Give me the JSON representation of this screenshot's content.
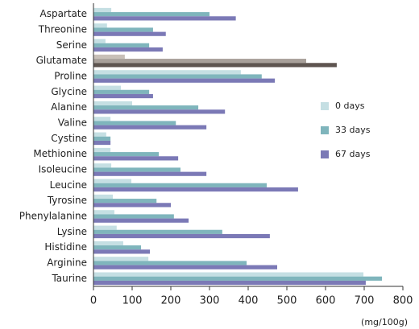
{
  "chart_data": {
    "type": "hbar",
    "x_label": "(mg/100g)",
    "categories": [
      "Aspartate",
      "Threonine",
      "Serine",
      "Glutamate",
      "Proline",
      "Glycine",
      "Alanine",
      "Valine",
      "Cystine",
      "Methionine",
      "Isoleucine",
      "Leucine",
      "Tyrosine",
      "Phenylalanine",
      "Lysine",
      "Histidine",
      "Arginine",
      "Taurine"
    ],
    "series": [
      {
        "name": "0 days",
        "color": "#c5dfe3",
        "colors": [
          "#c5dfe3",
          "#c5dfe3",
          "#c5dfe3",
          "#c8c0b8",
          "#c5dfe3",
          "#c5dfe3",
          "#c5dfe3",
          "#c5dfe3",
          "#c5dfe3",
          "#c5dfe3",
          "#c5dfe3",
          "#c5dfe3",
          "#c5dfe3",
          "#c5dfe3",
          "#c5dfe3",
          "#c5dfe3",
          "#c5dfe3",
          "#c5dfe3"
        ],
        "values": [
          46,
          35,
          31,
          81,
          381,
          71,
          100,
          44,
          33,
          44,
          46,
          98,
          50,
          54,
          60,
          77,
          142,
          698
        ]
      },
      {
        "name": "33 days",
        "color": "#7fb5bc",
        "colors": [
          "#7fb5bc",
          "#7fb5bc",
          "#7fb5bc",
          "#a8a09a",
          "#7fb5bc",
          "#7fb5bc",
          "#7fb5bc",
          "#7fb5bc",
          "#7fb5bc",
          "#7fb5bc",
          "#7fb5bc",
          "#7fb5bc",
          "#7fb5bc",
          "#7fb5bc",
          "#7fb5bc",
          "#7fb5bc",
          "#7fb5bc",
          "#7fb5bc"
        ],
        "values": [
          300,
          154,
          144,
          550,
          435,
          144,
          271,
          213,
          44,
          169,
          225,
          448,
          163,
          208,
          333,
          123,
          396,
          746
        ]
      },
      {
        "name": "67 days",
        "color": "#7b79b6",
        "colors": [
          "#7b79b6",
          "#7b79b6",
          "#7b79b6",
          "#5e5550",
          "#7b79b6",
          "#7b79b6",
          "#7b79b6",
          "#7b79b6",
          "#7b79b6",
          "#7b79b6",
          "#7b79b6",
          "#7b79b6",
          "#7b79b6",
          "#7b79b6",
          "#7b79b6",
          "#7b79b6",
          "#7b79b6",
          "#7b79b6"
        ],
        "values": [
          368,
          187,
          179,
          629,
          469,
          154,
          340,
          292,
          44,
          219,
          292,
          529,
          200,
          246,
          456,
          146,
          475,
          704
        ]
      }
    ],
    "xlim": [
      0,
      800
    ],
    "xticks": [
      0,
      100,
      200,
      300,
      400,
      500,
      600,
      700,
      800
    ]
  }
}
